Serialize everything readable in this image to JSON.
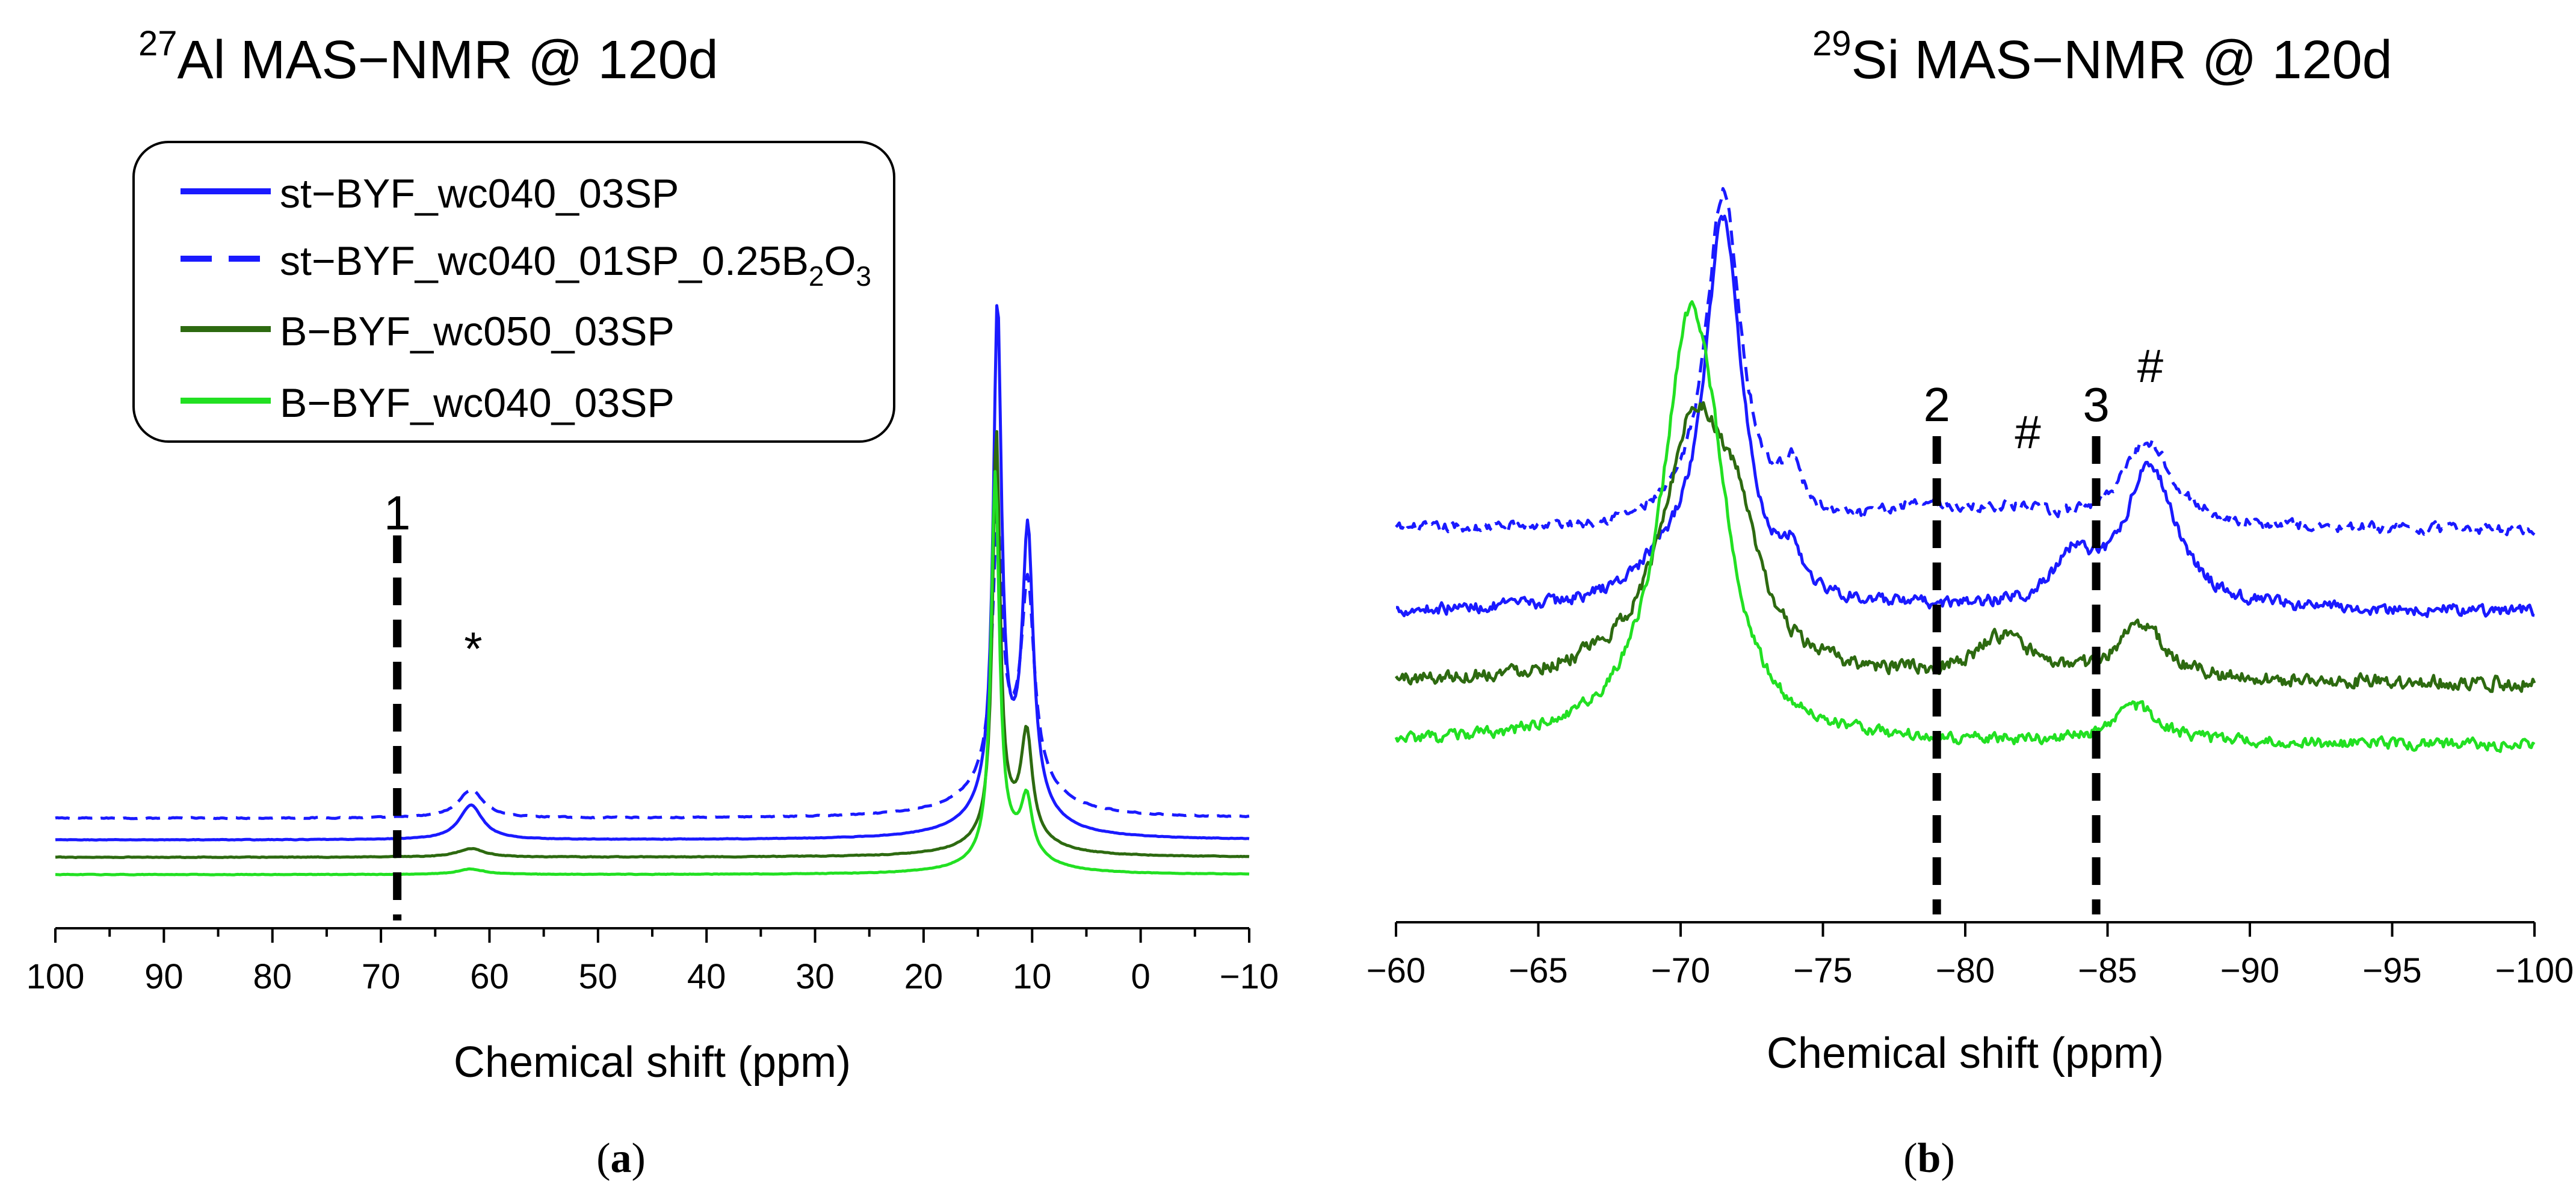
{
  "colors": {
    "blue": "#1a1aff",
    "dark_green": "#2d6a10",
    "light_green": "#22e022",
    "marker": "#000000"
  },
  "chart_data": [
    {
      "type": "line",
      "panel_label": "a",
      "title_sup": "27",
      "title_text": "Al MAS−NMR @ 120d",
      "xlabel": "Chemical shift (ppm)",
      "ylabel": "",
      "xlim": [
        100,
        -10
      ],
      "xticks": [
        100,
        90,
        80,
        70,
        60,
        50,
        40,
        30,
        20,
        10,
        0,
        -10
      ],
      "xtick_labels": [
        "100",
        "90",
        "80",
        "70",
        "60",
        "50",
        "40",
        "30",
        "20",
        "10",
        "0",
        "−10"
      ],
      "y_axis_visible": false,
      "legend": {
        "placement": "top-left",
        "entries": [
          {
            "label": "st−BYF_wc040_03SP",
            "color_key": "blue",
            "dash": false
          },
          {
            "label": "st−BYF_wc040_01SP_0.25B",
            "sub1": "2",
            "mid": "O",
            "sub2": "3",
            "color_key": "blue",
            "dash": true
          },
          {
            "label": "B−BYF_wc050_03SP",
            "color_key": "dark_green",
            "dash": false
          },
          {
            "label": "B−BYF_wc040_03SP",
            "color_key": "light_green",
            "dash": false
          }
        ]
      },
      "markers": [
        {
          "label": "1",
          "x": 68.5
        }
      ],
      "annotations": [
        {
          "text": "*",
          "x": 61.5
        }
      ],
      "series": [
        {
          "name": "st−BYF_wc040_01SP_0.25B2O3",
          "color_key": "blue",
          "dash": true,
          "baseline": 0.72,
          "noise": 0.008,
          "peaks": [
            {
              "c": 61.7,
              "h": 0.52,
              "w": 1.4
            },
            {
              "c": 13.2,
              "h": 4.5,
              "w": 0.55
            },
            {
              "c": 10.4,
              "h": 3.5,
              "w": 0.7
            },
            {
              "c": 12.0,
              "h": 1.0,
              "w": 3.5
            }
          ]
        },
        {
          "name": "st−BYF_wc040_03SP",
          "color_key": "blue",
          "dash": false,
          "baseline": 0.32,
          "noise": 0.004,
          "peaks": [
            {
              "c": 61.7,
              "h": 0.64,
              "w": 1.3
            },
            {
              "c": 13.2,
              "h": 8.95,
              "w": 0.45
            },
            {
              "c": 10.4,
              "h": 4.9,
              "w": 0.6
            },
            {
              "c": 12.0,
              "h": 1.0,
              "w": 3.0
            }
          ]
        },
        {
          "name": "B−BYF_wc050_03SP",
          "color_key": "dark_green",
          "dash": false,
          "baseline": 0.0,
          "noise": 0.005,
          "peaks": [
            {
              "c": 61.7,
              "h": 0.16,
              "w": 1.5
            },
            {
              "c": 13.3,
              "h": 7.35,
              "w": 0.4
            },
            {
              "c": 10.5,
              "h": 1.8,
              "w": 0.6
            },
            {
              "c": 12.0,
              "h": 0.6,
              "w": 3.0
            }
          ]
        },
        {
          "name": "B−BYF_wc040_03SP",
          "color_key": "light_green",
          "dash": false,
          "baseline": -0.32,
          "noise": 0.004,
          "peaks": [
            {
              "c": 61.7,
              "h": 0.1,
              "w": 1.5
            },
            {
              "c": 13.4,
              "h": 7.0,
              "w": 0.45
            },
            {
              "c": 10.5,
              "h": 1.0,
              "w": 0.6
            },
            {
              "c": 12.0,
              "h": 0.5,
              "w": 3.0
            }
          ]
        }
      ]
    },
    {
      "type": "line",
      "panel_label": "b",
      "title_sup": "29",
      "title_text": "Si MAS−NMR @ 120d",
      "xlabel": "Chemical shift (ppm)",
      "ylabel": "",
      "xlim": [
        -60,
        -100
      ],
      "xticks": [
        -60,
        -65,
        -70,
        -75,
        -80,
        -85,
        -90,
        -95,
        -100
      ],
      "xtick_labels": [
        "−60",
        "−65",
        "−70",
        "−75",
        "−80",
        "−85",
        "−90",
        "−95",
        "−100"
      ],
      "y_axis_visible": false,
      "markers": [
        {
          "label": "2",
          "x": -79.0
        },
        {
          "label": "3",
          "x": -84.6
        }
      ],
      "annotations": [
        {
          "text": "#",
          "x": -82.2
        },
        {
          "text": "#",
          "x": -86.5
        }
      ],
      "series": [
        {
          "name": "st−BYF_wc040_01SP_0.25B2O3",
          "color_key": "blue",
          "dash": true,
          "baseline": 1.55,
          "noise": 0.045,
          "peaks": [
            {
              "c": -71.5,
              "h": 3.3,
              "w": 0.75
            },
            {
              "c": -73.9,
              "h": 0.45,
              "w": 0.4
            },
            {
              "c": -86.4,
              "h": 0.85,
              "w": 1.1
            },
            {
              "c": -78.5,
              "h": 0.2,
              "w": 1.5
            },
            {
              "c": -81.5,
              "h": 0.15,
              "w": 1.5
            }
          ]
        },
        {
          "name": "st−BYF_wc040_03SP",
          "color_key": "blue",
          "dash": false,
          "baseline": 0.75,
          "noise": 0.05,
          "peaks": [
            {
              "c": -71.5,
              "h": 3.75,
              "w": 0.8
            },
            {
              "c": -73.9,
              "h": 0.35,
              "w": 0.4
            },
            {
              "c": -86.5,
              "h": 1.4,
              "w": 1.1
            },
            {
              "c": -83.8,
              "h": 0.45,
              "w": 0.8
            },
            {
              "c": -69.5,
              "h": 0.3,
              "w": 1.5
            }
          ]
        },
        {
          "name": "B−BYF_wc050_03SP",
          "color_key": "dark_green",
          "dash": false,
          "baseline": 0.05,
          "noise": 0.06,
          "peaks": [
            {
              "c": -70.5,
              "h": 2.5,
              "w": 1.4
            },
            {
              "c": -72.0,
              "h": 0.9,
              "w": 0.9
            },
            {
              "c": -86.2,
              "h": 0.55,
              "w": 1.0
            },
            {
              "c": -81.3,
              "h": 0.4,
              "w": 1.2
            }
          ]
        },
        {
          "name": "B−BYF_wc040_03SP",
          "color_key": "light_green",
          "dash": false,
          "baseline": -0.55,
          "noise": 0.05,
          "peaks": [
            {
              "c": -70.3,
              "h": 3.95,
              "w": 1.2
            },
            {
              "c": -71.2,
              "h": 0.7,
              "w": 0.8
            },
            {
              "c": -86.0,
              "h": 0.35,
              "w": 1.0
            }
          ]
        }
      ]
    }
  ]
}
